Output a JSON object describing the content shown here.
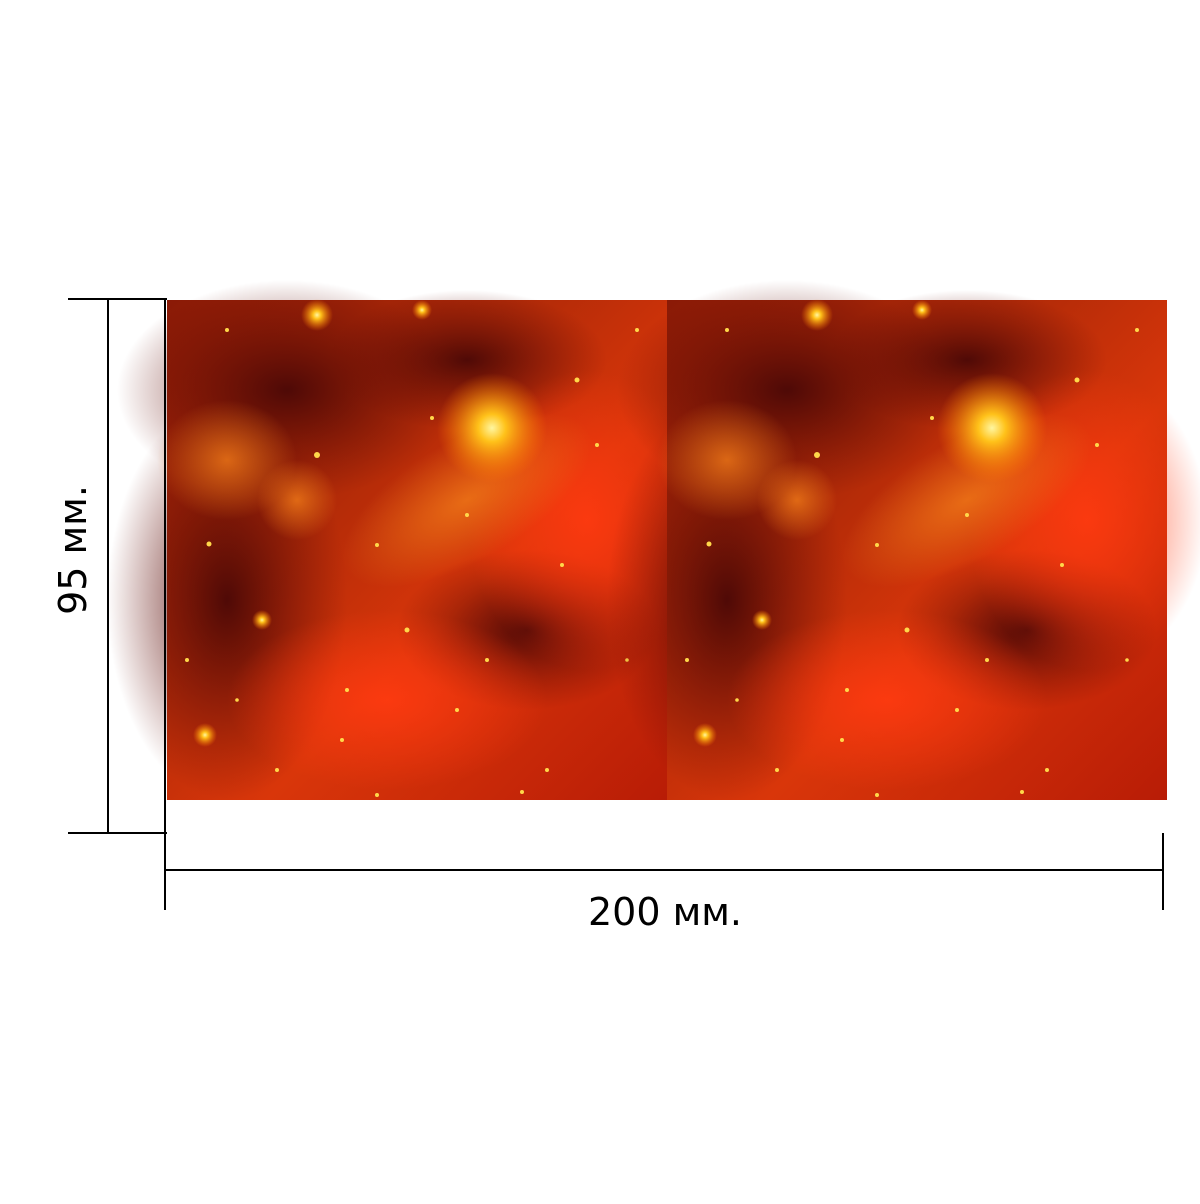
{
  "dimensions": {
    "width_label": "200 мм.",
    "height_label": "95 мм."
  },
  "panels": [
    {
      "name": "left-panel",
      "image": "red-space-nebula"
    },
    {
      "name": "right-panel",
      "image": "red-space-nebula"
    }
  ],
  "colors": {
    "line": "#000000",
    "nebula_dark": "#5a0a08",
    "nebula_mid": "#c42a08",
    "nebula_bright": "#e84a10",
    "star": "#ffd84a"
  }
}
